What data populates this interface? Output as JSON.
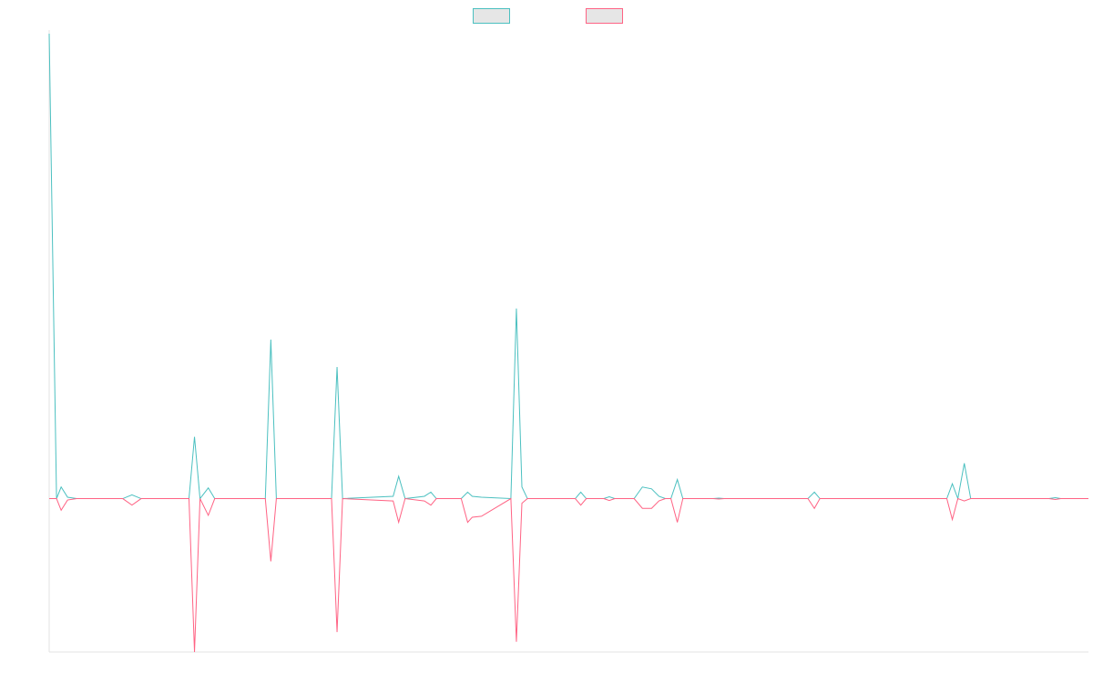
{
  "chart_data": {
    "type": "line",
    "title": "",
    "xlabel": "",
    "ylabel": "",
    "x_range": [
      0,
      113
    ],
    "ylim": [
      -0.33,
      1.0
    ],
    "grid": false,
    "legend": "top-center",
    "colors": {
      "series_a": "#4bc0c0",
      "series_b": "#ff6384",
      "swatch_fill": "#e6e6e6",
      "axis": "#e3e3e3"
    },
    "series": [
      {
        "name": "",
        "color": "#4bc0c0",
        "points": [
          [
            0,
            1.0
          ],
          [
            0.8,
            0.0
          ],
          [
            1.3,
            0.025
          ],
          [
            2,
            0.003
          ],
          [
            3,
            0.0
          ],
          [
            8,
            0.0
          ],
          [
            9,
            0.008
          ],
          [
            10,
            0.0
          ],
          [
            15.2,
            0.0
          ],
          [
            15.8,
            0.133
          ],
          [
            16.4,
            0.0
          ],
          [
            17.3,
            0.023
          ],
          [
            18,
            0.0
          ],
          [
            23.5,
            0.0
          ],
          [
            24.1,
            0.342
          ],
          [
            24.7,
            0.0
          ],
          [
            26,
            0.0
          ],
          [
            30.7,
            0.0
          ],
          [
            31.3,
            0.283
          ],
          [
            31.9,
            0.0
          ],
          [
            37.4,
            0.005
          ],
          [
            38,
            0.048
          ],
          [
            38.7,
            0.0
          ],
          [
            40.8,
            0.005
          ],
          [
            41.5,
            0.014
          ],
          [
            42.1,
            0.0
          ],
          [
            44.8,
            0.0
          ],
          [
            45.5,
            0.014
          ],
          [
            46,
            0.005
          ],
          [
            47,
            0.003
          ],
          [
            50.2,
            0.0
          ],
          [
            50.8,
            0.409
          ],
          [
            51.4,
            0.025
          ],
          [
            52,
            0.0
          ],
          [
            57.2,
            0.0
          ],
          [
            57.8,
            0.014
          ],
          [
            58.4,
            0.0
          ],
          [
            60.3,
            0.0
          ],
          [
            60.9,
            0.004
          ],
          [
            61.5,
            0.0
          ],
          [
            63.6,
            0.0
          ],
          [
            64.5,
            0.025
          ],
          [
            65.5,
            0.021
          ],
          [
            66.3,
            0.005
          ],
          [
            67,
            0.0
          ],
          [
            67.6,
            0.0
          ],
          [
            68.3,
            0.041
          ],
          [
            68.9,
            0.0
          ],
          [
            72.2,
            0.0
          ],
          [
            72.8,
            0.001
          ],
          [
            73.4,
            0.0
          ],
          [
            82.5,
            0.0
          ],
          [
            83.2,
            0.014
          ],
          [
            83.8,
            0.0
          ],
          [
            97.6,
            0.0
          ],
          [
            98.2,
            0.032
          ],
          [
            98.8,
            0.0
          ],
          [
            99.5,
            0.076
          ],
          [
            100.2,
            0.0
          ],
          [
            108.7,
            0.0
          ],
          [
            109.4,
            0.002
          ],
          [
            110,
            0.0
          ],
          [
            113,
            0.0
          ]
        ]
      },
      {
        "name": "",
        "color": "#ff6384",
        "points": [
          [
            0,
            0.0
          ],
          [
            0.8,
            0.0
          ],
          [
            1.3,
            -0.025
          ],
          [
            2,
            -0.003
          ],
          [
            3,
            0.0
          ],
          [
            8,
            0.0
          ],
          [
            9,
            -0.014
          ],
          [
            10,
            0.0
          ],
          [
            15.2,
            0.0
          ],
          [
            15.8,
            -0.33
          ],
          [
            16.4,
            0.0
          ],
          [
            17.3,
            -0.036
          ],
          [
            18,
            0.0
          ],
          [
            23.5,
            0.0
          ],
          [
            24.1,
            -0.135
          ],
          [
            24.7,
            0.0
          ],
          [
            26,
            0.0
          ],
          [
            30.7,
            0.0
          ],
          [
            31.3,
            -0.287
          ],
          [
            31.9,
            0.0
          ],
          [
            37.4,
            -0.005
          ],
          [
            38,
            -0.051
          ],
          [
            38.7,
            0.0
          ],
          [
            40.8,
            -0.005
          ],
          [
            41.5,
            -0.014
          ],
          [
            42.1,
            0.0
          ],
          [
            44.8,
            0.0
          ],
          [
            45.5,
            -0.051
          ],
          [
            46,
            -0.04
          ],
          [
            47,
            -0.038
          ],
          [
            50.2,
            0.0
          ],
          [
            50.8,
            -0.308
          ],
          [
            51.4,
            -0.01
          ],
          [
            52,
            0.0
          ],
          [
            57.2,
            0.0
          ],
          [
            57.8,
            -0.014
          ],
          [
            58.4,
            0.0
          ],
          [
            60.3,
            0.0
          ],
          [
            60.9,
            -0.004
          ],
          [
            61.5,
            0.0
          ],
          [
            63.6,
            0.0
          ],
          [
            64.5,
            -0.021
          ],
          [
            65.5,
            -0.021
          ],
          [
            66.3,
            -0.005
          ],
          [
            67,
            0.0
          ],
          [
            67.6,
            0.0
          ],
          [
            68.3,
            -0.051
          ],
          [
            68.9,
            0.0
          ],
          [
            72.2,
            0.0
          ],
          [
            72.8,
            -0.001
          ],
          [
            73.4,
            0.0
          ],
          [
            82.5,
            0.0
          ],
          [
            83.2,
            -0.021
          ],
          [
            83.8,
            0.0
          ],
          [
            97.6,
            0.0
          ],
          [
            98.2,
            -0.045
          ],
          [
            98.8,
            0.0
          ],
          [
            99.5,
            -0.005
          ],
          [
            100.2,
            0.0
          ],
          [
            108.7,
            0.0
          ],
          [
            109.4,
            -0.002
          ],
          [
            110,
            0.0
          ],
          [
            113,
            0.0
          ]
        ]
      }
    ]
  }
}
